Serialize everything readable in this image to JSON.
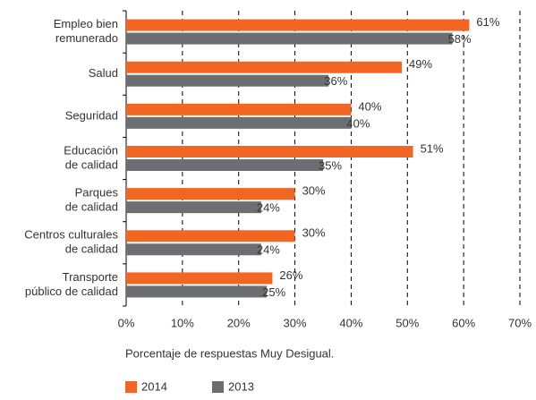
{
  "chart_data": {
    "type": "bar",
    "orientation": "horizontal",
    "categories": [
      [
        "Empleo bien",
        "remunerado"
      ],
      [
        "Salud"
      ],
      [
        "Seguridad"
      ],
      [
        "Educación",
        "de calidad"
      ],
      [
        "Parques",
        "de calidad"
      ],
      [
        "Centros culturales",
        "de calidad"
      ],
      [
        "Transporte",
        "público de calidad"
      ]
    ],
    "series": [
      {
        "name": "2014",
        "color": "#f26522",
        "values": [
          61,
          49,
          40,
          51,
          30,
          30,
          26
        ],
        "value_labels": [
          "61%",
          "49%",
          "40%",
          "51%",
          "30%",
          "30%",
          "26%"
        ]
      },
      {
        "name": "2013",
        "color": "#6d6e71",
        "values": [
          58,
          36,
          40,
          35,
          24,
          24,
          25
        ],
        "value_labels": [
          "58%",
          "36%",
          "40%",
          "35%",
          "24%",
          "24%",
          "25%"
        ]
      }
    ],
    "xlim": [
      0,
      70
    ],
    "xticks": [
      {
        "value": 0,
        "label": "0%"
      },
      {
        "value": 10,
        "label": "10%"
      },
      {
        "value": 20,
        "label": "20%"
      },
      {
        "value": 30,
        "label": "30%"
      },
      {
        "value": 40,
        "label": "40%"
      },
      {
        "value": 50,
        "label": "50%"
      },
      {
        "value": 60,
        "label": "60%"
      },
      {
        "value": 70,
        "label": "70%"
      }
    ],
    "xlabel": "Porcentaje de respuestas Muy Desigual.",
    "grid": true
  }
}
